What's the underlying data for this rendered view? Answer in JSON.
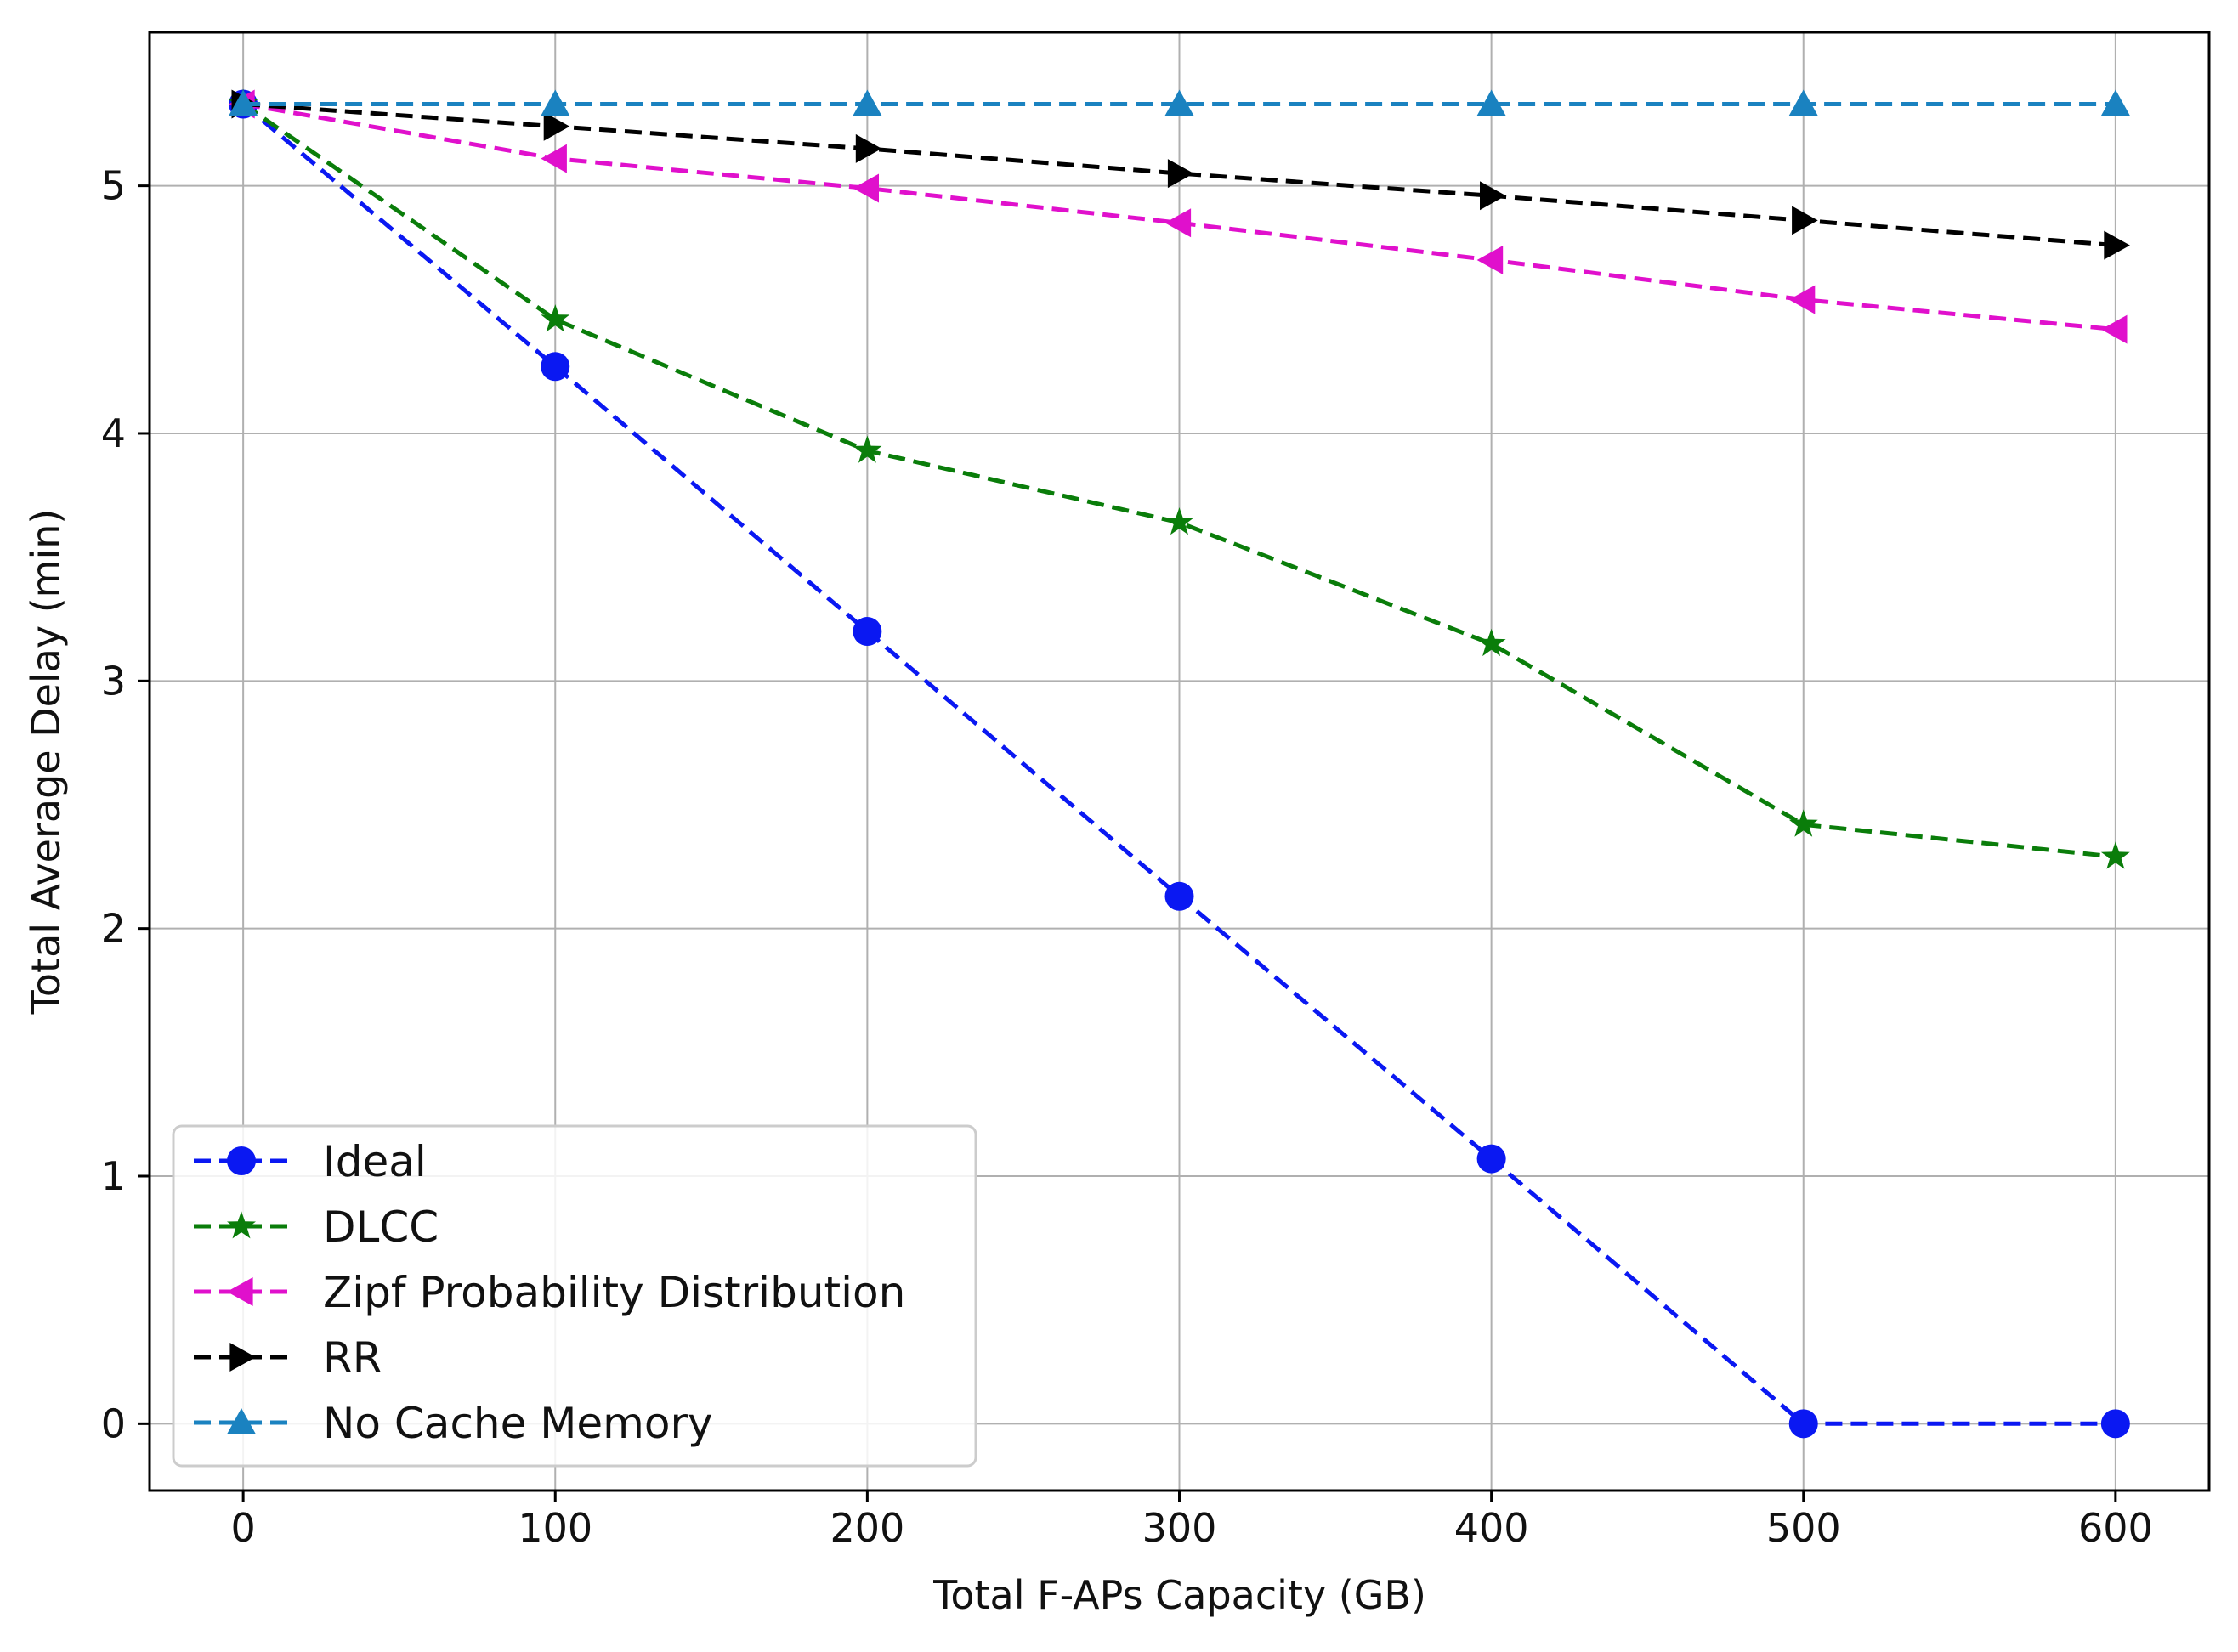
{
  "chart_data": {
    "type": "line",
    "title": "",
    "xlabel": "Total F-APs Capacity (GB)",
    "ylabel": "Total Average Delay (min)",
    "x": [
      0,
      100,
      200,
      300,
      400,
      500,
      600
    ],
    "xlim": [
      -30,
      630
    ],
    "ylim": [
      -0.27,
      5.62
    ],
    "xticks": [
      "0",
      "100",
      "200",
      "300",
      "400",
      "500",
      "600"
    ],
    "yticks": [
      "0",
      "1",
      "2",
      "3",
      "4",
      "5"
    ],
    "grid": true,
    "legend_position": "lower-left",
    "series": [
      {
        "name": "Ideal",
        "color": "#0a18f2",
        "marker": "circle",
        "linestyle": "dashed",
        "values": [
          5.33,
          4.27,
          3.2,
          2.13,
          1.07,
          0.0,
          0.0
        ]
      },
      {
        "name": "DLCC",
        "color": "#0a7d0a",
        "marker": "star",
        "linestyle": "dashed",
        "values": [
          5.33,
          4.46,
          3.93,
          3.64,
          3.15,
          2.42,
          2.29
        ]
      },
      {
        "name": "Zipf Probability Distribution",
        "color": "#e010cc",
        "marker": "triangle-left",
        "linestyle": "dashed",
        "values": [
          5.33,
          5.11,
          4.99,
          4.85,
          4.7,
          4.54,
          4.42
        ]
      },
      {
        "name": "RR",
        "color": "#000000",
        "marker": "triangle-right",
        "linestyle": "dashed",
        "values": [
          5.33,
          5.24,
          5.15,
          5.05,
          4.96,
          4.86,
          4.76
        ]
      },
      {
        "name": "No Cache Memory",
        "color": "#1a82c0",
        "marker": "triangle-up",
        "linestyle": "dashed",
        "values": [
          5.33,
          5.33,
          5.33,
          5.33,
          5.33,
          5.33,
          5.33
        ]
      }
    ]
  }
}
